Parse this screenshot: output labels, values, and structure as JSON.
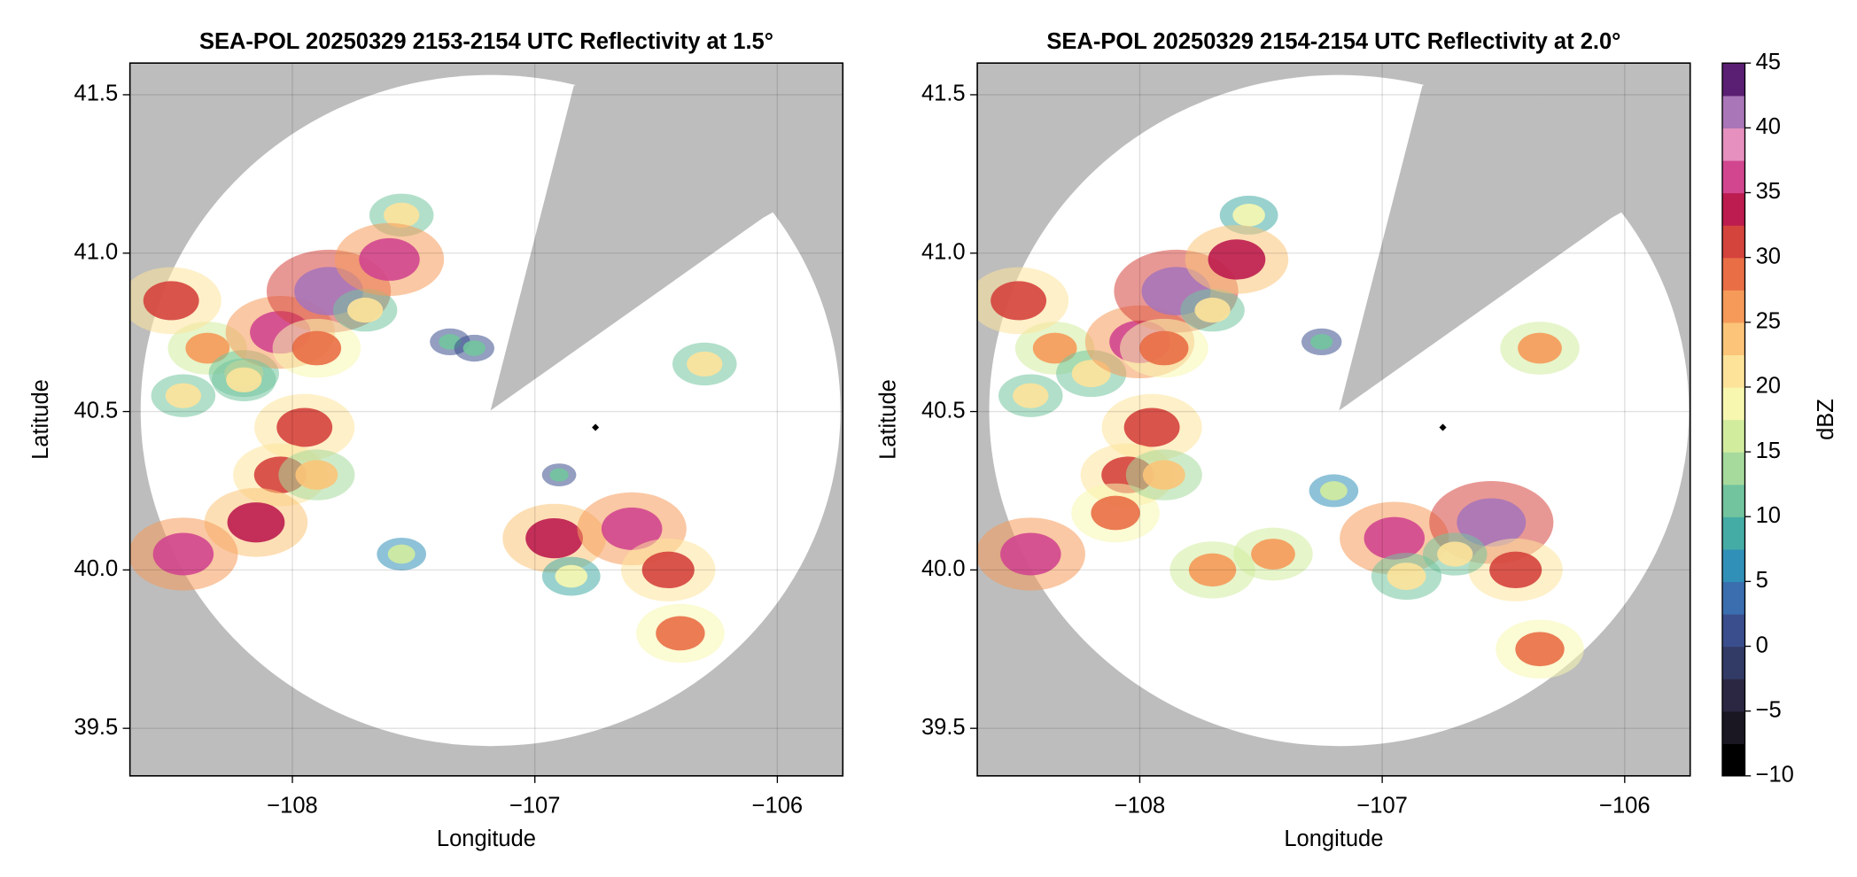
{
  "chart_data": [
    {
      "type": "radar",
      "title": "SEA-POL 20250329 2153-2154 UTC Reflectivity at 1.5°",
      "xlabel": "Longitude",
      "ylabel": "Latitude",
      "xlim": [
        -108.67,
        -105.73
      ],
      "ylim": [
        39.35,
        41.6
      ],
      "xticks": [
        {
          "value": -108,
          "label": "−108"
        },
        {
          "value": -107,
          "label": "−107"
        },
        {
          "value": -106,
          "label": "−106"
        }
      ],
      "yticks": [
        {
          "value": 39.5,
          "label": "39.5"
        },
        {
          "value": 40,
          "label": "40.0"
        },
        {
          "value": 40.5,
          "label": "40.5"
        },
        {
          "value": 41,
          "label": "41.0"
        },
        {
          "value": 41.5,
          "label": "41.5"
        }
      ],
      "grid": true,
      "echoes": {
        "x": [
          -108.35,
          -108.2,
          -108.05,
          -107.85,
          -107.9,
          -107.7,
          -108.45,
          -108.5,
          -107.95,
          -108.05,
          -108.15,
          -108.45,
          -107.9,
          -107.55,
          -107.35,
          -106.92,
          -106.6,
          -106.85,
          -106.45,
          -106.4,
          -106.3,
          -107.25,
          -106.9,
          -107.55,
          -107.6,
          -108.2
        ],
        "y": [
          40.7,
          40.62,
          40.75,
          40.88,
          40.7,
          40.82,
          40.55,
          40.85,
          40.45,
          40.3,
          40.15,
          40.05,
          40.3,
          40.05,
          40.72,
          40.1,
          40.13,
          39.98,
          40.0,
          39.8,
          40.65,
          40.7,
          40.3,
          41.12,
          40.98,
          40.6
        ],
        "values": [
          25,
          22,
          35,
          40,
          28,
          20,
          20,
          32,
          32,
          30,
          33,
          35,
          24,
          15,
          12,
          33,
          35,
          18,
          30,
          28,
          20,
          12,
          10,
          20,
          35,
          20
        ]
      },
      "site": {
        "x": -106.75,
        "y": 40.45,
        "color": "#000000"
      }
    },
    {
      "type": "radar",
      "title": "SEA-POL 20250329 2154-2154 UTC Reflectivity at 2.0°",
      "xlabel": "Longitude",
      "ylabel": "Latitude",
      "xlim": [
        -108.67,
        -105.73
      ],
      "ylim": [
        39.35,
        41.6
      ],
      "xticks": [
        {
          "value": -108,
          "label": "−108"
        },
        {
          "value": -107,
          "label": "−107"
        },
        {
          "value": -106,
          "label": "−106"
        }
      ],
      "yticks": [
        {
          "value": 39.5,
          "label": "39.5"
        },
        {
          "value": 40,
          "label": "40.0"
        },
        {
          "value": 40.5,
          "label": "40.5"
        },
        {
          "value": 41,
          "label": "41.0"
        },
        {
          "value": 41.5,
          "label": "41.5"
        }
      ],
      "grid": true,
      "echoes": {
        "x": [
          -108.35,
          -108.2,
          -108.0,
          -107.85,
          -107.9,
          -107.7,
          -108.45,
          -108.5,
          -107.95,
          -108.05,
          -108.1,
          -108.45,
          -107.9,
          -107.7,
          -107.45,
          -107.2,
          -106.95,
          -106.55,
          -106.45,
          -106.35,
          -106.35,
          -106.9,
          -107.55,
          -107.6,
          -107.25,
          -106.7
        ],
        "y": [
          40.7,
          40.62,
          40.72,
          40.88,
          40.7,
          40.82,
          40.55,
          40.85,
          40.45,
          40.3,
          40.18,
          40.05,
          40.3,
          40.0,
          40.05,
          40.25,
          40.1,
          40.15,
          40.0,
          40.7,
          39.75,
          39.98,
          41.12,
          40.98,
          40.72,
          40.05
        ],
        "values": [
          25,
          22,
          35,
          40,
          28,
          20,
          20,
          32,
          32,
          30,
          28,
          35,
          24,
          27,
          25,
          15,
          35,
          40,
          30,
          25,
          28,
          22,
          18,
          33,
          12,
          20
        ]
      },
      "site": {
        "x": -106.75,
        "y": 40.45,
        "color": "#000000"
      },
      "colorbar": {
        "label": "dBZ",
        "lim": [
          -10,
          45
        ],
        "ticks": [
          {
            "value": -10,
            "label": "−10"
          },
          {
            "value": -5,
            "label": "−5"
          },
          0,
          5,
          10,
          15,
          20,
          25,
          30,
          35,
          40,
          45
        ],
        "colors": [
          "#000000",
          "#1a1722",
          "#2b2742",
          "#323a66",
          "#3a4e8d",
          "#3a6eae",
          "#3190b8",
          "#45aca5",
          "#72c49f",
          "#a6da9d",
          "#d2ec9e",
          "#f7f7b0",
          "#fde39a",
          "#fbc478",
          "#f59a59",
          "#e96e45",
          "#d5433d",
          "#bc1c4f",
          "#d1468f",
          "#e590be",
          "#a976b8",
          "#5a1f72"
        ]
      }
    }
  ]
}
